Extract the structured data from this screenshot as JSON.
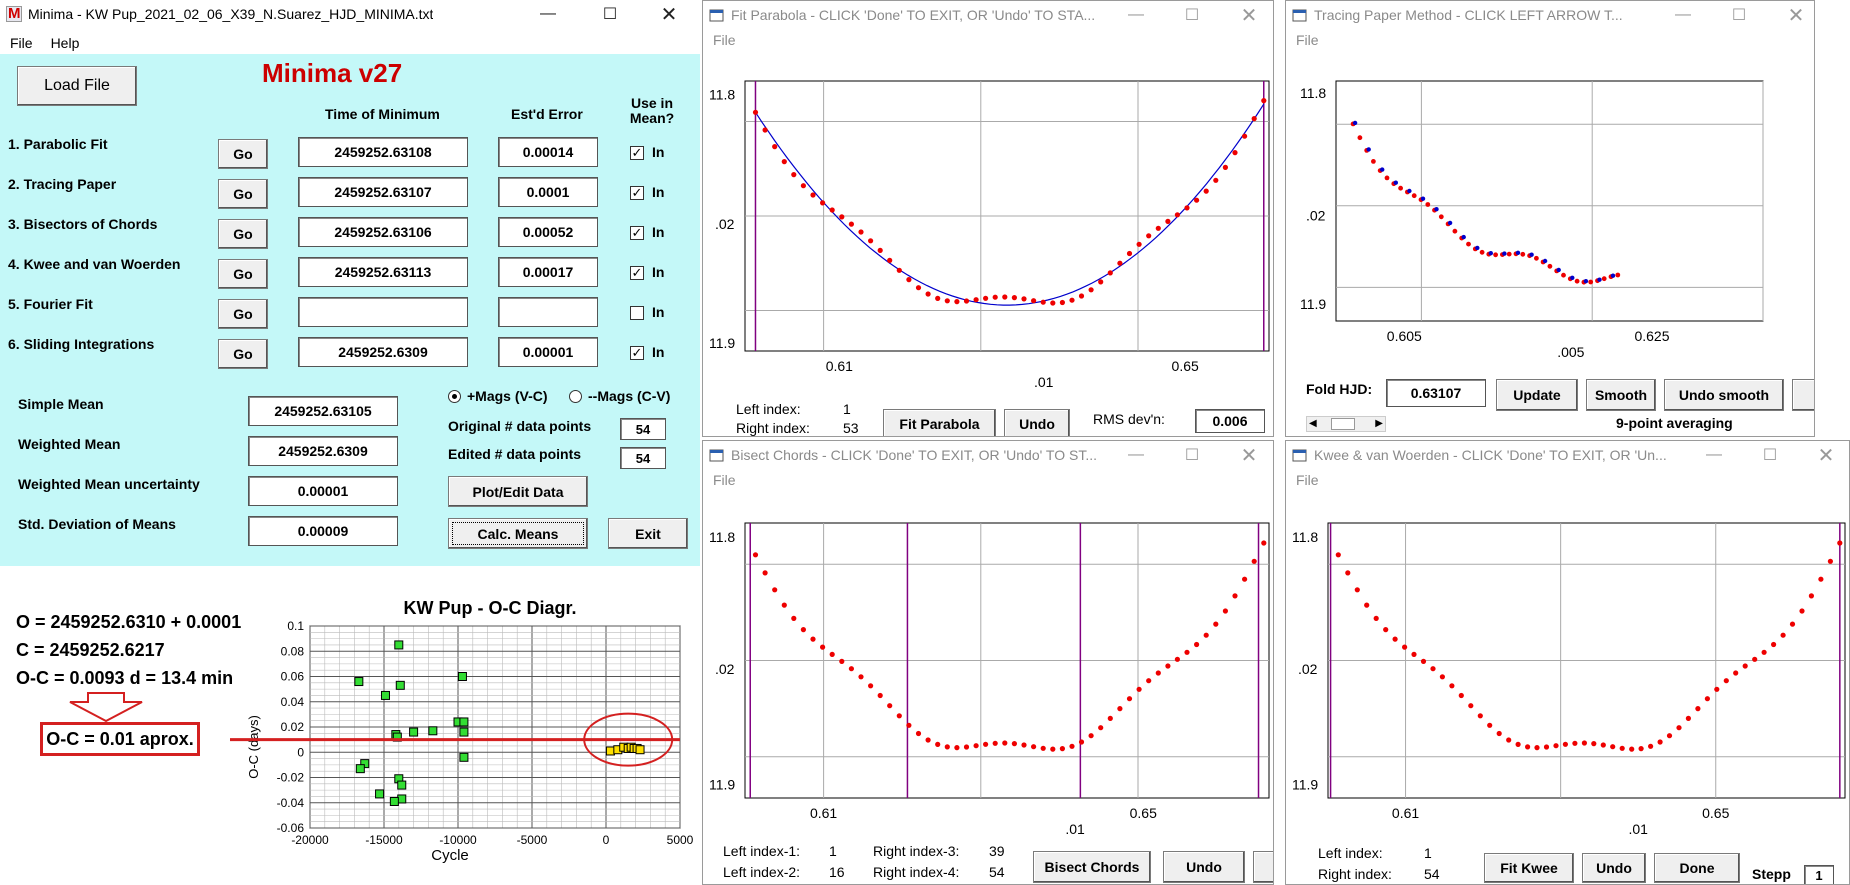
{
  "minima": {
    "title": "Minima - KW Pup_2021_02_06_X39_N.Suarez_HJD_MINIMA.txt",
    "menu": [
      "File",
      "Help"
    ],
    "app_name": "Minima v27",
    "load_button": "Load File",
    "col_time": "Time of Minimum",
    "col_error": "Est'd Error",
    "col_use": "Use in Mean?",
    "go_label": "Go",
    "in_label": "In",
    "methods": [
      {
        "name": "1. Parabolic Fit",
        "time": "2459252.63108",
        "error": "0.00014",
        "checked": true
      },
      {
        "name": "2. Tracing Paper",
        "time": "2459252.63107",
        "error": "0.0001",
        "checked": true
      },
      {
        "name": "3. Bisectors of Chords",
        "time": "2459252.63106",
        "error": "0.00052",
        "checked": true
      },
      {
        "name": "4. Kwee and van Woerden",
        "time": "2459252.63113",
        "error": "0.00017",
        "checked": true
      },
      {
        "name": "5. Fourier Fit",
        "time": "",
        "error": "",
        "checked": false
      },
      {
        "name": "6. Sliding Integrations",
        "time": "2459252.6309",
        "error": "0.00001",
        "checked": true
      }
    ],
    "simple_mean_label": "Simple Mean",
    "simple_mean": "2459252.63105",
    "weighted_mean_label": "Weighted Mean",
    "weighted_mean": "2459252.6309",
    "wm_uncert_label": "Weighted Mean uncertainty",
    "wm_uncert": "0.00001",
    "std_dev_label": "Std. Deviation of Means",
    "std_dev": "0.00009",
    "radio_plus": "+Mags (V-C)",
    "radio_minus": "--Mags (C-V)",
    "orig_pts_label": "Original # data points",
    "orig_pts": "54",
    "edit_pts_label": "Edited # data points",
    "edit_pts": "54",
    "plot_edit_button": "Plot/Edit Data",
    "calc_means_button": "Calc. Means",
    "exit_button": "Exit"
  },
  "annotation": {
    "line_o": "O = 2459252.6310 + 0.0001",
    "line_c": "C = 2459252.6217",
    "line_oc": "O-C = 0.0093 d = 13.4 min",
    "boxed": "O-C = 0.01 aprox."
  },
  "fit_parabola": {
    "title": "Fit Parabola - CLICK 'Done' TO EXIT, OR 'Undo' TO STA...",
    "menu": "File",
    "left_index_label": "Left index:",
    "left_index": "1",
    "right_index_label": "Right index:",
    "right_index": "53",
    "fit_button": "Fit Parabola",
    "undo_button": "Undo",
    "rms_label": "RMS dev'n:",
    "rms": "0.006"
  },
  "tracing_paper": {
    "title": "Tracing Paper Method - CLICK LEFT ARROW T...",
    "menu": "File",
    "fold_label": "Fold HJD:",
    "fold": "0.63107",
    "update_button": "Update",
    "smooth_button": "Smooth",
    "undo_smooth_button": "Undo smooth",
    "averaging": "9-point averaging"
  },
  "bisect_chords": {
    "title": "Bisect Chords - CLICK 'Done' TO EXIT, OR 'Undo' TO ST...",
    "menu": "File",
    "l1_label": "Left index-1:",
    "l1": "1",
    "l2_label": "Left index-2:",
    "l2": "16",
    "r3_label": "Right index-3:",
    "r3": "39",
    "r4_label": "Right index-4:",
    "r4": "54",
    "bisect_button": "Bisect Chords",
    "undo_button": "Undo"
  },
  "kwee": {
    "title": "Kwee & van Woerden - CLICK 'Done' TO EXIT, OR 'Un...",
    "menu": "File",
    "left_index_label": "Left index:",
    "left_index": "1",
    "right_index_label": "Right index:",
    "right_index": "54",
    "fit_button": "Fit Kwee",
    "undo_button": "Undo",
    "done_button": "Done",
    "stepp_label": "Stepp",
    "stepp": "1"
  },
  "lightcurve_ticks": {
    "y_top": "11.8",
    "y_mid": ".02",
    "y_bot": "11.9",
    "x_left": "0.61",
    "x_right": "0.65",
    "x_sub": ".01"
  },
  "tracing_ticks": {
    "y_top": "11.8",
    "y_mid": ".02",
    "y_bot": "11.9",
    "x_left": "0.605",
    "x_right": "0.625",
    "x_sub": ".005"
  },
  "chart_data": {
    "type": "scatter",
    "title": "KW Pup - O-C Diagr.",
    "xlabel": "Cycle",
    "ylabel": "O-C (days)",
    "xlim": [
      -20000,
      5000
    ],
    "ylim": [
      -0.06,
      0.1
    ],
    "x_ticks": [
      "-20000",
      "-15000",
      "-10000",
      "-5000",
      "0",
      "5000"
    ],
    "y_ticks": [
      "0.1",
      "0.08",
      "0.06",
      "0.04",
      "0.02",
      "0",
      "-0.02",
      "-0.04",
      "-0.06"
    ],
    "grid": true,
    "series": [
      {
        "color": "#33dd33",
        "points": [
          [
            -14000,
            0.085
          ],
          [
            -16700,
            0.056
          ],
          [
            -13900,
            0.053
          ],
          [
            -14900,
            0.045
          ],
          [
            -9700,
            0.06
          ],
          [
            -10000,
            0.024
          ],
          [
            -9600,
            0.024
          ],
          [
            -9600,
            0.016
          ],
          [
            -11700,
            0.017
          ],
          [
            -13000,
            0.016
          ],
          [
            -14200,
            0.014
          ],
          [
            -14100,
            0.012
          ],
          [
            -9600,
            -0.004
          ],
          [
            -16300,
            -0.009
          ],
          [
            -16600,
            -0.013
          ],
          [
            -14000,
            -0.021
          ],
          [
            -13800,
            -0.026
          ],
          [
            -15300,
            -0.033
          ],
          [
            -13800,
            -0.037
          ],
          [
            -14300,
            -0.039
          ]
        ]
      },
      {
        "color": "#ffe000",
        "points": [
          [
            300,
            0.001
          ],
          [
            800,
            0.002
          ],
          [
            1200,
            0.004
          ],
          [
            1500,
            0.003
          ],
          [
            1700,
            0.004
          ],
          [
            1900,
            0.003
          ],
          [
            2100,
            0.003
          ],
          [
            2300,
            0.002
          ]
        ]
      }
    ],
    "reference_line": 0.01
  },
  "colors": {
    "panel": "#c4f8f8",
    "app_name": "#cc0000",
    "points": "#ee0000",
    "fit": "#0000cc",
    "markers": "#800080",
    "annotation": "#d42020"
  }
}
